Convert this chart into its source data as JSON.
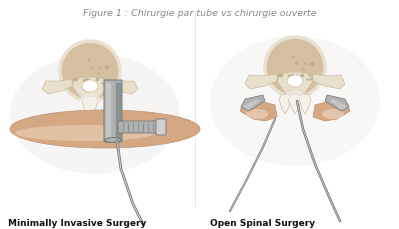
{
  "figsize": [
    3.99,
    2.29
  ],
  "dpi": 100,
  "bg_color": "#ffffff",
  "caption": "Figure 1 : Chirurgie par tube vs chirurgie ouverte",
  "caption_color": "#888888",
  "caption_fontsize": 6.8,
  "caption_fontstyle": "italic",
  "left_label": "Minimally Invasive Surgery",
  "right_label": "Open Spinal Surgery",
  "label_fontsize": 6.5,
  "label_fontweight": "bold",
  "label_color": "#111111",
  "skin_color": "#d4a882",
  "skin_edge": "#c09070",
  "skin_light": "#f0dac8",
  "bone_body": "#e8e0cc",
  "bone_light": "#f5f0e8",
  "bone_edge": "#c8bca0",
  "disc_color": "#d4c0a0",
  "disc_edge": "#b8a888",
  "disc_dot": "#c0aa88",
  "tool_light": "#d0d0d0",
  "tool_mid": "#b0b0b0",
  "tool_dark": "#707878",
  "tool_vdark": "#404848",
  "bg_shadow": "#f0ece8"
}
